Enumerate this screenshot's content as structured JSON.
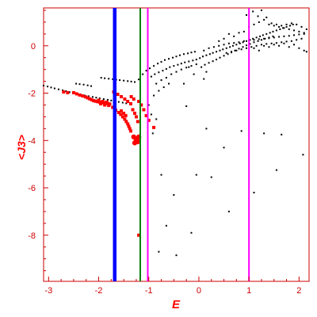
{
  "chart_data": {
    "type": "scatter",
    "title": "",
    "xlabel": "E",
    "ylabel": "<J3>",
    "xlim": [
      -3.1,
      2.2
    ],
    "ylim": [
      -9.95,
      1.6
    ],
    "x_ticks": [
      -3,
      -2,
      -1,
      0,
      1,
      2
    ],
    "y_ticks": [
      0,
      -2,
      -4,
      -6,
      -8
    ],
    "grid": false,
    "legend": "none",
    "colors": {
      "axis": "#cc0000",
      "black_points": "#000000",
      "red_points": "#ff0000",
      "blue_line": "#0000ff",
      "green_line": "#008000",
      "magenta_line": "#ff00ff"
    },
    "vertical_lines": [
      {
        "x": -1.68,
        "color": "#0000ff",
        "width": "thick"
      },
      {
        "x": -1.17,
        "color": "#008000",
        "width": "medium"
      },
      {
        "x": -1.02,
        "color": "#ff00ff",
        "width": "medium"
      },
      {
        "x": 1.0,
        "color": "#ff00ff",
        "width": "medium"
      }
    ],
    "series": [
      {
        "color": "#000000",
        "marker": "small",
        "points": [
          [
            -3.1,
            -1.68
          ],
          [
            -3.02,
            -1.72
          ],
          [
            -2.95,
            -1.76
          ],
          [
            -2.88,
            -1.8
          ],
          [
            -2.8,
            -1.84
          ],
          [
            -2.72,
            -1.88
          ],
          [
            -2.65,
            -1.92
          ],
          [
            -2.58,
            -1.96
          ],
          [
            -2.5,
            -2.0
          ],
          [
            -2.42,
            -2.04
          ],
          [
            -2.35,
            -2.07
          ],
          [
            -2.28,
            -2.1
          ],
          [
            -2.2,
            -2.13
          ],
          [
            -2.12,
            -2.16
          ],
          [
            -2.05,
            -2.19
          ],
          [
            -1.98,
            -2.22
          ],
          [
            -1.9,
            -2.25
          ],
          [
            -1.82,
            -2.28
          ],
          [
            -1.75,
            -2.31
          ],
          [
            -1.68,
            -2.34
          ],
          [
            -1.6,
            -2.37
          ],
          [
            -1.52,
            -2.4
          ],
          [
            -1.45,
            -2.43
          ],
          [
            -2.45,
            -1.6
          ],
          [
            -2.38,
            -1.62
          ],
          [
            -2.3,
            -1.64
          ],
          [
            -2.22,
            -1.67
          ],
          [
            -2.15,
            -1.7
          ],
          [
            -1.95,
            -1.35
          ],
          [
            -1.88,
            -1.37
          ],
          [
            -1.8,
            -1.39
          ],
          [
            -1.72,
            -1.41
          ],
          [
            -1.65,
            -1.43
          ],
          [
            -1.58,
            -1.45
          ],
          [
            -1.5,
            -1.47
          ],
          [
            -1.42,
            -1.49
          ],
          [
            -1.35,
            -1.51
          ],
          [
            -1.28,
            -1.53
          ],
          [
            -1.2,
            -1.42
          ],
          [
            -1.12,
            -1.2
          ],
          [
            -1.05,
            -1.05
          ],
          [
            -0.98,
            -0.95
          ],
          [
            -0.9,
            -0.85
          ],
          [
            -0.82,
            -0.75
          ],
          [
            -0.75,
            -0.68
          ],
          [
            -0.68,
            -0.6
          ],
          [
            -0.6,
            -0.55
          ],
          [
            -0.52,
            -0.5
          ],
          [
            -0.45,
            -0.45
          ],
          [
            -0.38,
            -0.4
          ],
          [
            -0.3,
            -0.35
          ],
          [
            -0.22,
            -0.32
          ],
          [
            -0.15,
            -0.28
          ],
          [
            -0.08,
            -0.25
          ],
          [
            -0.95,
            -1.3
          ],
          [
            -0.88,
            -1.2
          ],
          [
            -0.8,
            -1.12
          ],
          [
            -0.72,
            -1.05
          ],
          [
            -0.65,
            -0.98
          ],
          [
            -0.58,
            -0.9
          ],
          [
            -0.5,
            -0.85
          ],
          [
            -0.42,
            -0.8
          ],
          [
            -0.35,
            -0.75
          ],
          [
            -0.28,
            -0.7
          ],
          [
            -0.2,
            -0.66
          ],
          [
            -0.12,
            -0.62
          ],
          [
            -0.05,
            -0.58
          ],
          [
            -0.85,
            -1.6
          ],
          [
            -0.75,
            -1.45
          ],
          [
            -0.65,
            -1.35
          ],
          [
            -0.55,
            -1.2
          ],
          [
            -0.45,
            -1.1
          ],
          [
            -0.35,
            -1.0
          ],
          [
            -0.25,
            -0.92
          ],
          [
            -0.15,
            -0.85
          ],
          [
            -0.05,
            -0.78
          ],
          [
            -0.9,
            -2.1
          ],
          [
            -0.8,
            -1.9
          ],
          [
            -0.7,
            -1.75
          ],
          [
            -0.6,
            -1.6
          ],
          [
            -1.0,
            -2.5
          ],
          [
            -0.95,
            -2.9
          ],
          [
            -0.85,
            -3.1
          ],
          [
            -0.92,
            -3.7
          ],
          [
            0.02,
            -0.52
          ],
          [
            0.08,
            -0.45
          ],
          [
            0.15,
            -0.4
          ],
          [
            0.22,
            -0.35
          ],
          [
            0.28,
            -0.3
          ],
          [
            0.35,
            -0.25
          ],
          [
            0.42,
            -0.2
          ],
          [
            0.48,
            -0.15
          ],
          [
            0.55,
            -0.1
          ],
          [
            0.62,
            -0.05
          ],
          [
            0.68,
            0.0
          ],
          [
            0.75,
            0.05
          ],
          [
            0.82,
            0.1
          ],
          [
            0.88,
            0.15
          ],
          [
            0.95,
            0.2
          ],
          [
            1.02,
            0.25
          ],
          [
            1.08,
            0.3
          ],
          [
            1.15,
            0.35
          ],
          [
            1.22,
            0.4
          ],
          [
            1.28,
            0.45
          ],
          [
            1.35,
            0.5
          ],
          [
            1.42,
            0.55
          ],
          [
            1.48,
            0.6
          ],
          [
            1.55,
            0.65
          ],
          [
            1.62,
            0.7
          ],
          [
            1.68,
            0.75
          ],
          [
            1.75,
            0.8
          ],
          [
            1.82,
            0.85
          ],
          [
            1.88,
            0.9
          ],
          [
            0.05,
            -0.9
          ],
          [
            0.12,
            -0.8
          ],
          [
            0.2,
            -0.72
          ],
          [
            0.28,
            -0.65
          ],
          [
            0.35,
            -0.58
          ],
          [
            0.42,
            -0.5
          ],
          [
            0.5,
            -0.42
          ],
          [
            0.58,
            -0.35
          ],
          [
            0.65,
            -0.28
          ],
          [
            0.72,
            -0.2
          ],
          [
            0.8,
            -0.12
          ],
          [
            0.88,
            -0.05
          ],
          [
            0.95,
            0.02
          ],
          [
            1.02,
            0.08
          ],
          [
            1.1,
            0.15
          ],
          [
            1.18,
            0.2
          ],
          [
            1.25,
            0.25
          ],
          [
            1.32,
            0.3
          ],
          [
            1.4,
            0.35
          ],
          [
            1.48,
            0.4
          ],
          [
            0.1,
            -0.2
          ],
          [
            0.2,
            -0.1
          ],
          [
            0.3,
            -0.05
          ],
          [
            0.4,
            0.0
          ],
          [
            0.5,
            0.05
          ],
          [
            0.6,
            0.1
          ],
          [
            0.7,
            0.12
          ],
          [
            0.8,
            0.15
          ],
          [
            0.9,
            0.2
          ],
          [
            1.0,
            0.22
          ],
          [
            1.1,
            0.25
          ],
          [
            1.2,
            0.28
          ],
          [
            1.3,
            0.3
          ],
          [
            1.4,
            0.32
          ],
          [
            1.5,
            0.35
          ],
          [
            1.6,
            0.38
          ],
          [
            1.7,
            0.4
          ],
          [
            1.8,
            0.42
          ],
          [
            1.9,
            0.45
          ],
          [
            2.0,
            0.48
          ],
          [
            2.1,
            0.5
          ],
          [
            0.55,
            -0.3
          ],
          [
            0.65,
            -0.25
          ],
          [
            0.75,
            -0.2
          ],
          [
            0.85,
            -0.15
          ],
          [
            0.95,
            -0.1
          ],
          [
            1.05,
            -0.05
          ],
          [
            1.15,
            0.0
          ],
          [
            1.25,
            0.05
          ],
          [
            1.35,
            0.08
          ],
          [
            1.45,
            0.1
          ],
          [
            1.55,
            0.12
          ],
          [
            1.65,
            0.15
          ],
          [
            1.75,
            0.18
          ],
          [
            1.85,
            0.2
          ],
          [
            1.95,
            0.25
          ],
          [
            2.05,
            0.3
          ],
          [
            0.9,
            0.6
          ],
          [
            1.0,
            0.8
          ],
          [
            1.1,
            0.9
          ],
          [
            1.2,
            1.0
          ],
          [
            1.3,
            1.1
          ],
          [
            1.4,
            0.9
          ],
          [
            1.5,
            0.85
          ],
          [
            1.6,
            0.8
          ],
          [
            1.7,
            0.75
          ],
          [
            1.8,
            0.7
          ],
          [
            1.9,
            0.65
          ],
          [
            2.0,
            0.6
          ],
          [
            2.1,
            0.55
          ],
          [
            0.95,
            1.3
          ],
          [
            1.08,
            1.45
          ],
          [
            1.18,
            1.25
          ],
          [
            1.25,
            1.5
          ],
          [
            1.35,
            1.2
          ],
          [
            1.45,
            0.95
          ],
          [
            1.55,
            0.9
          ],
          [
            1.65,
            0.85
          ],
          [
            1.75,
            0.9
          ],
          [
            1.85,
            0.95
          ],
          [
            1.95,
            0.9
          ],
          [
            2.05,
            0.8
          ],
          [
            2.15,
            0.7
          ],
          [
            1.1,
            -0.1
          ],
          [
            1.2,
            -0.2
          ],
          [
            1.3,
            0.0
          ],
          [
            1.4,
            -0.05
          ],
          [
            1.5,
            0.05
          ],
          [
            1.6,
            0.0
          ],
          [
            1.7,
            0.1
          ],
          [
            1.8,
            -0.05
          ],
          [
            1.9,
            0.05
          ],
          [
            2.0,
            -0.1
          ],
          [
            2.1,
            -0.2
          ],
          [
            2.15,
            -0.25
          ],
          [
            0.6,
            0.5
          ],
          [
            0.7,
            0.4
          ],
          [
            0.8,
            0.55
          ],
          [
            0.5,
            0.3
          ],
          [
            0.4,
            0.2
          ],
          [
            -0.2,
            -0.9
          ],
          [
            0.1,
            -1.4
          ],
          [
            -0.3,
            -1.6
          ],
          [
            0.15,
            -1.1
          ],
          [
            -0.1,
            -1.2
          ],
          [
            -0.25,
            -2.55
          ],
          [
            0.15,
            -3.5
          ],
          [
            0.5,
            -4.3
          ],
          [
            0.85,
            -3.6
          ],
          [
            -0.75,
            -5.45
          ],
          [
            -0.5,
            -6.3
          ],
          [
            -0.05,
            -5.45
          ],
          [
            0.25,
            -5.55
          ],
          [
            1.3,
            -3.7
          ],
          [
            1.65,
            -3.75
          ],
          [
            1.55,
            -5.25
          ],
          [
            2.08,
            -4.6
          ],
          [
            1.1,
            -6.2
          ],
          [
            0.6,
            -7.0
          ],
          [
            -0.65,
            -7.6
          ],
          [
            -0.15,
            -7.9
          ],
          [
            -0.8,
            -8.7
          ],
          [
            -0.45,
            -8.85
          ]
        ]
      },
      {
        "color": "#ff0000",
        "marker": "medium",
        "points": [
          [
            -2.5,
            -1.98
          ],
          [
            -2.44,
            -2.03
          ],
          [
            -2.38,
            -2.08
          ],
          [
            -2.32,
            -2.12
          ],
          [
            -2.26,
            -2.16
          ],
          [
            -2.22,
            -2.2
          ],
          [
            -2.18,
            -2.24
          ],
          [
            -2.14,
            -2.28
          ],
          [
            -2.1,
            -2.32
          ],
          [
            -2.06,
            -2.34
          ],
          [
            -2.02,
            -2.36
          ],
          [
            -1.98,
            -2.38
          ],
          [
            -1.94,
            -2.4
          ],
          [
            -1.9,
            -2.41
          ],
          [
            -1.86,
            -2.42
          ],
          [
            -1.82,
            -2.44
          ],
          [
            -1.78,
            -2.46
          ],
          [
            -2.0,
            -2.3
          ],
          [
            -1.96,
            -2.45
          ],
          [
            -1.92,
            -2.35
          ],
          [
            -1.88,
            -2.5
          ],
          [
            -1.84,
            -2.38
          ],
          [
            -1.8,
            -2.52
          ],
          [
            -1.72,
            -2.6
          ],
          [
            -1.66,
            -2.72
          ],
          [
            -1.6,
            -2.82
          ],
          [
            -1.56,
            -2.9
          ],
          [
            -1.52,
            -3.0
          ],
          [
            -1.48,
            -3.1
          ],
          [
            -1.45,
            -3.2
          ],
          [
            -1.42,
            -3.3
          ],
          [
            -1.4,
            -3.4
          ],
          [
            -1.38,
            -3.5
          ],
          [
            -1.36,
            -3.6
          ],
          [
            -1.55,
            -2.75
          ],
          [
            -1.5,
            -2.85
          ],
          [
            -1.46,
            -2.95
          ],
          [
            -1.7,
            -1.95
          ],
          [
            -1.62,
            -2.05
          ],
          [
            -1.55,
            -2.15
          ],
          [
            -1.48,
            -2.25
          ],
          [
            -1.42,
            -2.35
          ],
          [
            -1.36,
            -2.45
          ],
          [
            -1.32,
            -2.7
          ],
          [
            -1.28,
            -2.85
          ],
          [
            -1.25,
            -3.0
          ],
          [
            -1.22,
            -3.2
          ],
          [
            -1.3,
            -3.85
          ],
          [
            -1.25,
            -3.95
          ],
          [
            -1.22,
            -4.05
          ],
          [
            -1.28,
            -4.1
          ],
          [
            -1.2,
            -3.85
          ],
          [
            -1.2,
            -2.35
          ],
          [
            -1.15,
            -2.5
          ],
          [
            -1.1,
            -2.7
          ],
          [
            -1.05,
            -2.95
          ],
          [
            -1.0,
            -3.15
          ],
          [
            -0.9,
            -3.45
          ],
          [
            -1.35,
            -2.15
          ],
          [
            -1.3,
            -2.25
          ],
          [
            -2.7,
            -1.95
          ],
          [
            -2.62,
            -1.98
          ],
          [
            -1.2,
            -8.0
          ]
        ]
      }
    ]
  }
}
